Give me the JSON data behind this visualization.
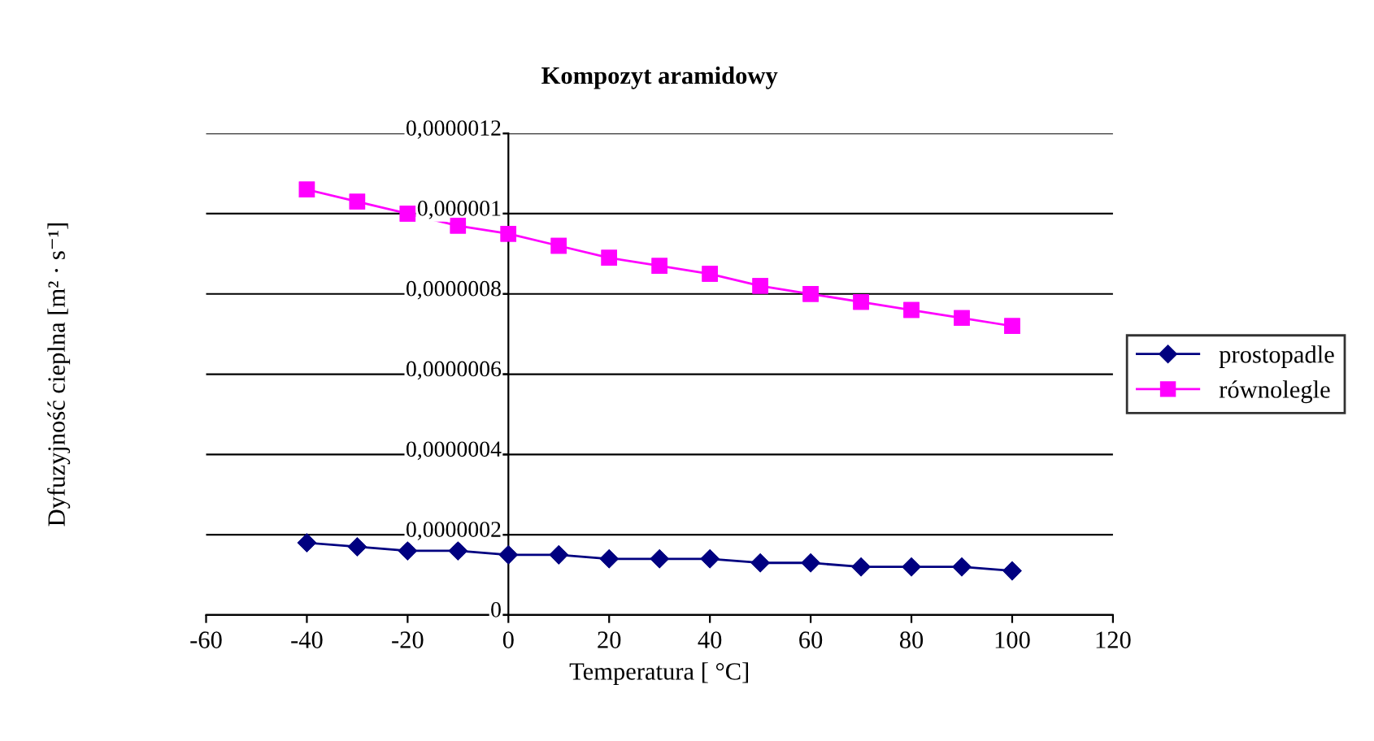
{
  "chart_data": {
    "type": "line",
    "title": "Kompozyt aramidowy",
    "xlabel": "Temperatura [ °C]",
    "ylabel": "Dyfuzyjność cieplna [m² · s⁻¹]",
    "x": [
      -40,
      -30,
      -20,
      -10,
      0,
      10,
      20,
      30,
      40,
      50,
      60,
      70,
      80,
      90,
      100
    ],
    "series": [
      {
        "name": "prostopadle",
        "color": "#000080",
        "marker": "diamond",
        "values": [
          1.8e-07,
          1.7e-07,
          1.6e-07,
          1.6e-07,
          1.5e-07,
          1.5e-07,
          1.4e-07,
          1.4e-07,
          1.4e-07,
          1.3e-07,
          1.3e-07,
          1.2e-07,
          1.2e-07,
          1.2e-07,
          1.1e-07
        ]
      },
      {
        "name": "równolegle",
        "color": "#ff00ff",
        "marker": "square",
        "values": [
          1.06e-06,
          1.03e-06,
          1e-06,
          9.7e-07,
          9.5e-07,
          9.2e-07,
          8.9e-07,
          8.7e-07,
          8.5e-07,
          8.2e-07,
          8e-07,
          7.8e-07,
          7.6e-07,
          7.4e-07,
          7.2e-07
        ]
      }
    ],
    "xlim": [
      -60,
      120
    ],
    "xticks": [
      -60,
      -40,
      -20,
      0,
      20,
      40,
      60,
      80,
      100,
      120
    ],
    "ylim": [
      0,
      1.2e-06
    ],
    "yticks": [
      {
        "value": 0,
        "label": "0"
      },
      {
        "value": 2e-07,
        "label": "0,0000002"
      },
      {
        "value": 4e-07,
        "label": "0,0000004"
      },
      {
        "value": 6e-07,
        "label": "0,0000006"
      },
      {
        "value": 8e-07,
        "label": "0,0000008"
      },
      {
        "value": 1e-06,
        "label": "0,000001"
      },
      {
        "value": 1.2e-06,
        "label": "0,0000012"
      }
    ],
    "grid": "y",
    "legend": "right",
    "line_style": "solid"
  }
}
